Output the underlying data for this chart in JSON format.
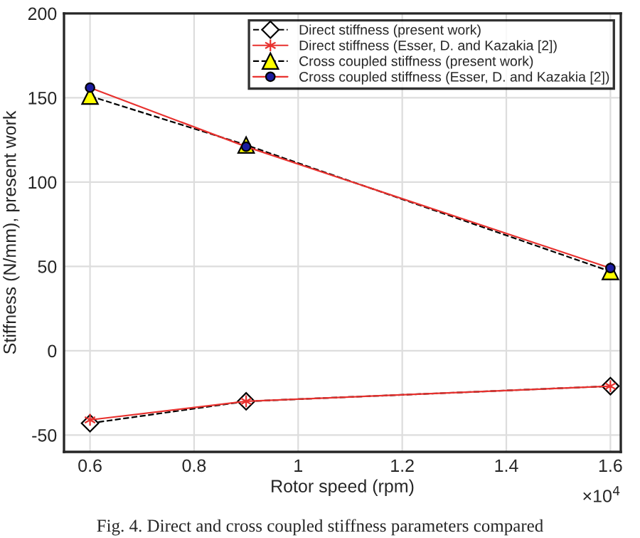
{
  "chart_data": {
    "type": "line",
    "xlabel": "Rotor speed (rpm)",
    "ylabel": "Stiffness (N/mm), present work",
    "x": [
      0.6,
      0.9,
      1.6
    ],
    "series": [
      {
        "name": "Direct stiffness (present work)",
        "color": "#ffffff",
        "values": [
          -43,
          -30,
          -21
        ],
        "marker": "diamond",
        "line_style": "dashed"
      },
      {
        "name": "Direct stiffness (Esser, D. and Kazakia [2])",
        "color": "#e8312e",
        "values": [
          -41,
          -30,
          -21
        ],
        "marker": "cross",
        "line_style": "solid"
      },
      {
        "name": "Cross coupled stiffness (present work)",
        "color": "#ffff00",
        "values": [
          151,
          122,
          47
        ],
        "marker": "triangle",
        "line_style": "dashed"
      },
      {
        "name": "Cross coupled stiffness (Esser, D. and Kazakia [2])",
        "color": "#1c1ca0",
        "values": [
          156,
          121,
          49
        ],
        "marker": "circle",
        "line_style": "solid"
      }
    ],
    "xlim": [
      0.55,
      1.62
    ],
    "xticks": [
      0.6,
      0.8,
      1,
      1.2,
      1.4,
      1.6
    ],
    "ylim": [
      -60,
      200
    ],
    "yticks": [
      -50,
      0,
      50,
      100,
      150,
      200
    ],
    "grid": true,
    "legend": "top right",
    "annotations": [
      "×10$^{4}$",
      "Fig. 4. Direct and cross coupled stiffness parameters compared"
    ]
  }
}
